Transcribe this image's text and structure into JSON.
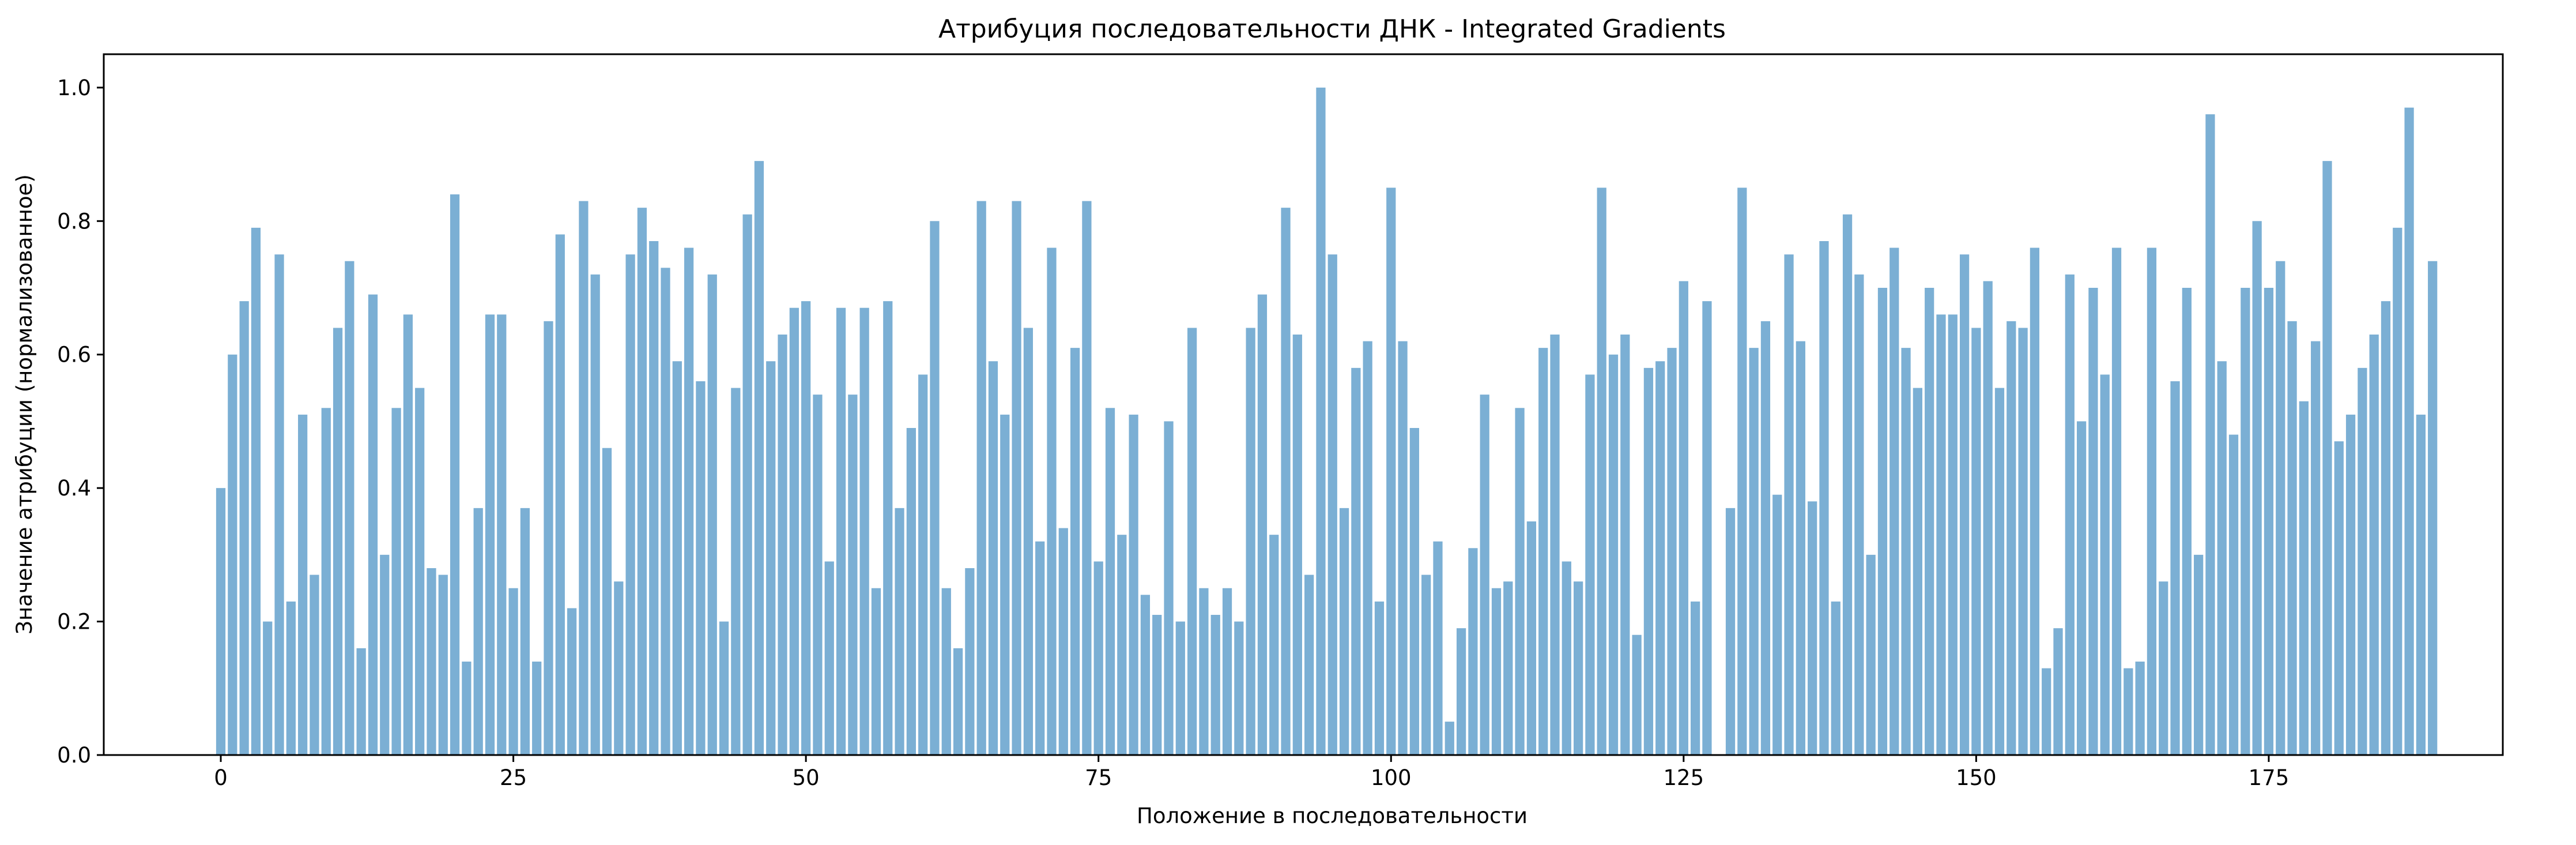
{
  "chart_data": {
    "type": "bar",
    "title": "Атрибуция последовательности ДНК - Integrated Gradients",
    "xlabel": "Положение в последовательности",
    "ylabel": "Значение атрибуции (нормализованное)",
    "xlim": [
      -10,
      195
    ],
    "ylim": [
      0,
      1.05
    ],
    "xticks": [
      0,
      25,
      50,
      75,
      100,
      125,
      150,
      175
    ],
    "yticks": [
      0.0,
      0.2,
      0.4,
      0.6,
      0.8,
      1.0
    ],
    "xtick_labels": [
      "0",
      "25",
      "50",
      "75",
      "100",
      "125",
      "150",
      "175"
    ],
    "ytick_labels": [
      "0.0",
      "0.2",
      "0.4",
      "0.6",
      "0.8",
      "1.0"
    ],
    "grid": false,
    "bar_color": "#7bafd4",
    "x": [
      0,
      1,
      2,
      3,
      4,
      5,
      6,
      7,
      8,
      9,
      10,
      11,
      12,
      13,
      14,
      15,
      16,
      17,
      18,
      19,
      20,
      21,
      22,
      23,
      24,
      25,
      26,
      27,
      28,
      29,
      30,
      31,
      32,
      33,
      34,
      35,
      36,
      37,
      38,
      39,
      40,
      41,
      42,
      43,
      44,
      45,
      46,
      47,
      48,
      49,
      50,
      51,
      52,
      53,
      54,
      55,
      56,
      57,
      58,
      59,
      60,
      61,
      62,
      63,
      64,
      65,
      66,
      67,
      68,
      69,
      70,
      71,
      72,
      73,
      74,
      75,
      76,
      77,
      78,
      79,
      80,
      81,
      82,
      83,
      84,
      85,
      86,
      87,
      88,
      89,
      90,
      91,
      92,
      93,
      94,
      95,
      96,
      97,
      98,
      99,
      100,
      101,
      102,
      103,
      104,
      105,
      106,
      107,
      108,
      109,
      110,
      111,
      112,
      113,
      114,
      115,
      116,
      117,
      118,
      119,
      120,
      121,
      122,
      123,
      124,
      125,
      126,
      127,
      128,
      129,
      130,
      131,
      132,
      133,
      134,
      135,
      136,
      137,
      138,
      139,
      140,
      141,
      142,
      143,
      144,
      145,
      146,
      147,
      148,
      149,
      150,
      151,
      152,
      153,
      154,
      155,
      156,
      157,
      158,
      159,
      160,
      161,
      162,
      163,
      164,
      165,
      166,
      167,
      168,
      169,
      170,
      171,
      172,
      173,
      174,
      175,
      176,
      177,
      178,
      179,
      180,
      181,
      182,
      183,
      184,
      185,
      186,
      187,
      188,
      189
    ],
    "values": [
      0.4,
      0.6,
      0.68,
      0.79,
      0.2,
      0.75,
      0.23,
      0.51,
      0.27,
      0.52,
      0.64,
      0.74,
      0.16,
      0.69,
      0.3,
      0.52,
      0.66,
      0.55,
      0.28,
      0.27,
      0.84,
      0.14,
      0.37,
      0.66,
      0.66,
      0.25,
      0.37,
      0.14,
      0.65,
      0.78,
      0.22,
      0.83,
      0.72,
      0.46,
      0.26,
      0.75,
      0.82,
      0.77,
      0.73,
      0.59,
      0.76,
      0.56,
      0.72,
      0.2,
      0.55,
      0.81,
      0.89,
      0.59,
      0.63,
      0.67,
      0.68,
      0.54,
      0.29,
      0.67,
      0.54,
      0.67,
      0.25,
      0.68,
      0.37,
      0.49,
      0.57,
      0.8,
      0.25,
      0.16,
      0.28,
      0.83,
      0.59,
      0.51,
      0.83,
      0.64,
      0.32,
      0.76,
      0.34,
      0.61,
      0.83,
      0.29,
      0.52,
      0.33,
      0.51,
      0.24,
      0.21,
      0.5,
      0.2,
      0.64,
      0.25,
      0.21,
      0.25,
      0.2,
      0.64,
      0.69,
      0.33,
      0.82,
      0.63,
      0.27,
      1.0,
      0.75,
      0.37,
      0.58,
      0.62,
      0.23,
      0.85,
      0.62,
      0.49,
      0.27,
      0.32,
      0.05,
      0.19,
      0.31,
      0.54,
      0.25,
      0.26,
      0.52,
      0.35,
      0.61,
      0.63,
      0.29,
      0.26,
      0.57,
      0.85,
      0.6,
      0.63,
      0.18,
      0.58,
      0.59,
      0.61,
      0.71,
      0.23,
      0.68,
      0.0,
      0.37,
      0.85,
      0.61,
      0.65,
      0.39,
      0.75,
      0.62,
      0.38,
      0.77,
      0.23,
      0.81,
      0.72,
      0.3,
      0.7,
      0.76,
      0.61,
      0.55,
      0.7,
      0.66,
      0.66,
      0.75,
      0.64,
      0.71,
      0.55,
      0.65,
      0.64,
      0.76,
      0.13,
      0.19,
      0.72,
      0.5,
      0.7,
      0.57,
      0.76,
      0.13,
      0.14,
      0.76,
      0.26,
      0.56,
      0.7,
      0.3,
      0.96,
      0.59,
      0.48,
      0.7,
      0.8,
      0.7,
      0.74,
      0.65,
      0.53,
      0.62,
      0.89,
      0.47,
      0.51,
      0.58,
      0.63,
      0.68,
      0.79,
      0.97,
      0.51,
      0.74
    ]
  }
}
